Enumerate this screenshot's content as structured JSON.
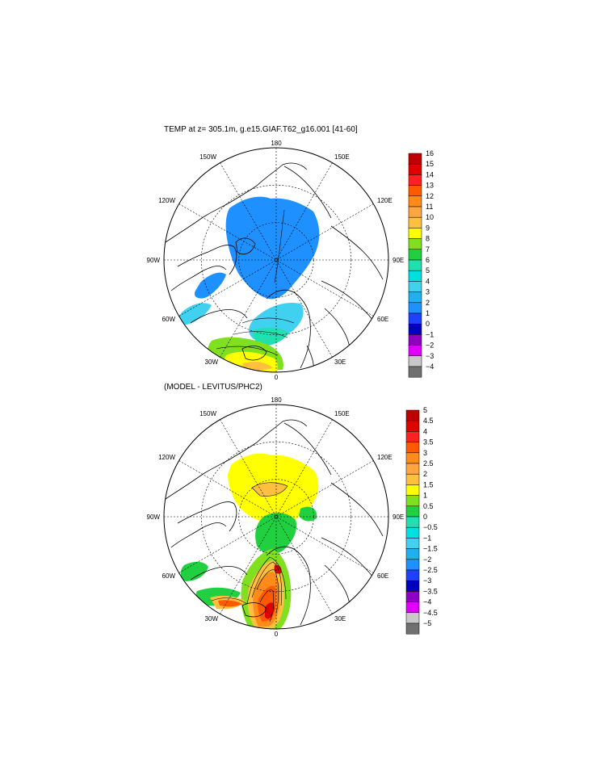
{
  "panels": [
    {
      "title": "TEMP at z= 305.1m, g.e15.GIAF.T62_g16.001 [41-60]",
      "lon_labels": {
        "top": "180",
        "bottom": "0",
        "left": "90W",
        "right": "90E",
        "ul": "150W",
        "ur": "150E",
        "ml": "120W",
        "mr": "120E",
        "ll": "60W",
        "lr": "60E",
        "bl": "30W",
        "br": "30E"
      },
      "colorbar": {
        "labels": [
          "16",
          "15",
          "14",
          "13",
          "12",
          "11",
          "10",
          "9",
          "8",
          "7",
          "6",
          "5",
          "4",
          "3",
          "2",
          "1",
          "0",
          "−1",
          "−2",
          "−3",
          "−4"
        ],
        "colors": [
          "#c00000",
          "#e00000",
          "#ff2020",
          "#ff5a00",
          "#ff8c1a",
          "#ffa640",
          "#ffc040",
          "#ffff00",
          "#80e020",
          "#20d040",
          "#20e0b0",
          "#00e0e0",
          "#40d0f0",
          "#20b0f0",
          "#1e90ff",
          "#2040ff",
          "#0000c0",
          "#9000c0",
          "#e000ff",
          "#c8c8c8",
          "#707070"
        ]
      }
    },
    {
      "title": "(MODEL - LEVITUS/PHC2)",
      "lon_labels": {
        "top": "180",
        "bottom": "0",
        "left": "90W",
        "right": "90E",
        "ul": "150W",
        "ur": "150E",
        "ml": "120W",
        "mr": "120E",
        "ll": "60W",
        "lr": "60E",
        "bl": "30W",
        "br": "30E"
      },
      "colorbar": {
        "labels": [
          "5",
          "4.5",
          "4",
          "3.5",
          "3",
          "2.5",
          "2",
          "1.5",
          "1",
          "0.5",
          "0",
          "−0.5",
          "−1",
          "−1.5",
          "−2",
          "−2.5",
          "−3",
          "−3.5",
          "−4",
          "−4.5",
          "−5"
        ],
        "colors": [
          "#c00000",
          "#e00000",
          "#ff2020",
          "#ff5a00",
          "#ff8c1a",
          "#ffa640",
          "#ffc040",
          "#ffff00",
          "#80e020",
          "#20d040",
          "#20e0b0",
          "#00e0e0",
          "#40d0f0",
          "#20b0f0",
          "#1e90ff",
          "#2040ff",
          "#0000c0",
          "#9000c0",
          "#e000ff",
          "#c8c8c8",
          "#707070"
        ]
      }
    }
  ]
}
